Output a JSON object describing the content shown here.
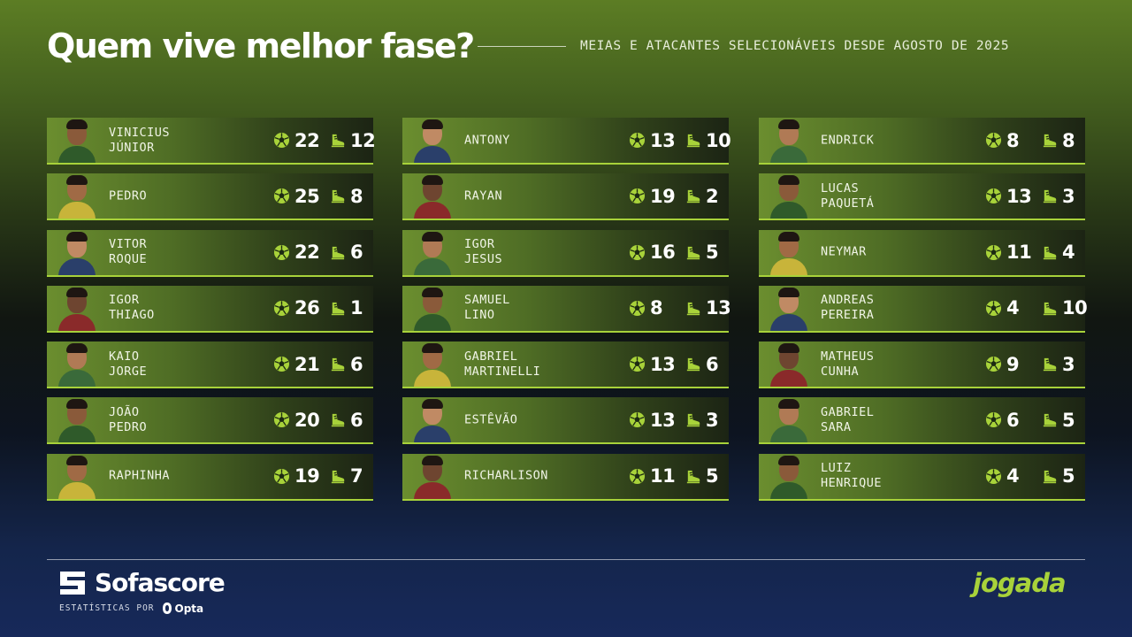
{
  "header": {
    "title": "Quem vive melhor fase?",
    "subtitle": "MEIAS E ATACANTES SELECIONÁVEIS DESDE AGOSTO DE 2025"
  },
  "icons": {
    "goals": "soccer-ball-icon",
    "assists": "boot-icon"
  },
  "colors": {
    "accent": "#a8d23a"
  },
  "columns": [
    {
      "players": [
        {
          "name": [
            "VINICIUS",
            "JÚNIOR"
          ],
          "goals": "22",
          "assists": "12"
        },
        {
          "name": [
            "PEDRO"
          ],
          "goals": "25",
          "assists": "8"
        },
        {
          "name": [
            "VITOR",
            "ROQUE"
          ],
          "goals": "22",
          "assists": "6"
        },
        {
          "name": [
            "IGOR",
            "THIAGO"
          ],
          "goals": "26",
          "assists": "1"
        },
        {
          "name": [
            "KAIO",
            "JORGE"
          ],
          "goals": "21",
          "assists": "6"
        },
        {
          "name": [
            "JOÃO",
            "PEDRO"
          ],
          "goals": "20",
          "assists": "6"
        },
        {
          "name": [
            "RAPHINHA"
          ],
          "goals": "19",
          "assists": "7"
        }
      ]
    },
    {
      "players": [
        {
          "name": [
            "ANTONY"
          ],
          "goals": "13",
          "assists": "10"
        },
        {
          "name": [
            "RAYAN"
          ],
          "goals": "19",
          "assists": "2"
        },
        {
          "name": [
            "IGOR",
            "JESUS"
          ],
          "goals": "16",
          "assists": "5"
        },
        {
          "name": [
            "SAMUEL",
            "LINO"
          ],
          "goals": "8",
          "assists": "13"
        },
        {
          "name": [
            "GABRIEL",
            "MARTINELLI"
          ],
          "goals": "13",
          "assists": "6"
        },
        {
          "name": [
            "ESTÊVÃO"
          ],
          "goals": "13",
          "assists": "3"
        },
        {
          "name": [
            "RICHARLISON"
          ],
          "goals": "11",
          "assists": "5"
        }
      ]
    },
    {
      "players": [
        {
          "name": [
            "ENDRICK"
          ],
          "goals": "8",
          "assists": "8"
        },
        {
          "name": [
            "LUCAS",
            "PAQUETÁ"
          ],
          "goals": "13",
          "assists": "3"
        },
        {
          "name": [
            "NEYMAR"
          ],
          "goals": "11",
          "assists": "4"
        },
        {
          "name": [
            "ANDREAS",
            "PEREIRA"
          ],
          "goals": "4",
          "assists": "10"
        },
        {
          "name": [
            "MATHEUS",
            "CUNHA"
          ],
          "goals": "9",
          "assists": "3"
        },
        {
          "name": [
            "GABRIEL",
            "SARA"
          ],
          "goals": "6",
          "assists": "5"
        },
        {
          "name": [
            "LUIZ",
            "HENRIQUE"
          ],
          "goals": "4",
          "assists": "5"
        }
      ]
    }
  ],
  "footer": {
    "brand": "Sofascore",
    "stats_by": "ESTATÍSTICAS POR",
    "provider": "Opta",
    "partner": "jogada"
  }
}
